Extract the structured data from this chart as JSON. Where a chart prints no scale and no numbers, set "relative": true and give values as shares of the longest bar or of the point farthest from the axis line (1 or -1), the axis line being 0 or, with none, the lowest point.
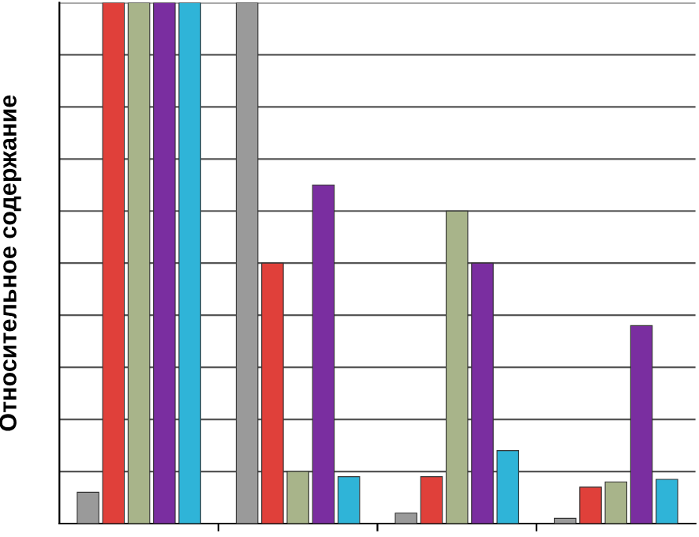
{
  "chart_data": {
    "type": "bar",
    "relative": true,
    "ylabel": "Относительное содержание",
    "categories": [
      null,
      null,
      null,
      null
    ],
    "grid": "y",
    "legend": false,
    "series": [
      {
        "color": "#9a9a9a",
        "values": [
          0.06,
          1,
          0.02,
          0.01
        ]
      },
      {
        "color": "#e0403a",
        "values": [
          1,
          0.5,
          0.09,
          0.07
        ]
      },
      {
        "color": "#a8b48a",
        "values": [
          1,
          0.1,
          0.6,
          0.08
        ]
      },
      {
        "color": "#7a2ea0",
        "values": [
          1,
          0.65,
          0.5,
          0.38
        ]
      },
      {
        "color": "#2fb4d8",
        "values": [
          1,
          0.09,
          0.14,
          0.085
        ]
      }
    ]
  }
}
